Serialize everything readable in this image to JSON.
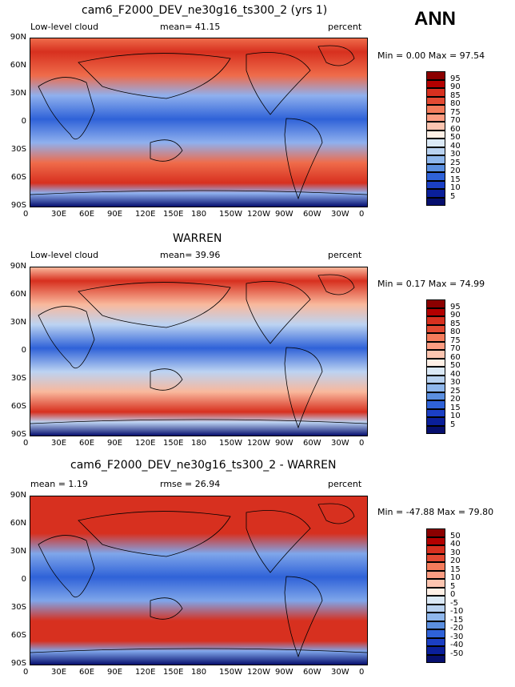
{
  "annual_label": "ANN",
  "panels": [
    {
      "title": "cam6_F2000_DEV_ne30g16_ts300_2 (yrs 1)",
      "left_text": "Low-level cloud",
      "mid_text": "mean=  41.15",
      "right_text": "percent",
      "minmax": "Min =    0.00 Max =   97.54",
      "colorbar": [
        "95",
        "90",
        "85",
        "80",
        "75",
        "70",
        "60",
        "50",
        "40",
        "30",
        "25",
        "20",
        "15",
        "10",
        "5"
      ],
      "colors": [
        "#8b0000",
        "#b30000",
        "#d7301f",
        "#e34a33",
        "#f47c5c",
        "#fc9d82",
        "#fcc5b0",
        "#fff0e6",
        "#dbe9f6",
        "#b9d2f0",
        "#8fb7ec",
        "#5b8fe0",
        "#2f62d8",
        "#1b3fc4",
        "#0a1f9a",
        "#060f6e"
      ],
      "bg": "#8fb0ee",
      "highlight": "#ef6b4a"
    },
    {
      "title": "WARREN",
      "left_text": "Low-level cloud",
      "mid_text": "mean=  39.96",
      "right_text": "percent",
      "minmax": "Min =    0.17 Max =   74.99",
      "colorbar": [
        "95",
        "90",
        "85",
        "80",
        "75",
        "70",
        "60",
        "50",
        "40",
        "30",
        "25",
        "20",
        "15",
        "10",
        "5"
      ],
      "colors": [
        "#8b0000",
        "#b30000",
        "#d7301f",
        "#e34a33",
        "#f47c5c",
        "#fc9d82",
        "#fcc5b0",
        "#fff0e6",
        "#dbe9f6",
        "#b9d2f0",
        "#8fb7ec",
        "#5b8fe0",
        "#2f62d8",
        "#1b3fc4",
        "#0a1f9a",
        "#060f6e"
      ],
      "bg": "#bcd3f2",
      "highlight": "#f9b89c"
    },
    {
      "title": "cam6_F2000_DEV_ne30g16_ts300_2 - WARREN",
      "left_text": "mean =    1.19",
      "mid_text": "rmse =   26.94",
      "right_text": "percent",
      "minmax": "Min = -47.88 Max =   79.80",
      "colorbar": [
        "50",
        "40",
        "30",
        "20",
        "15",
        "10",
        "5",
        "0",
        "-5",
        "-10",
        "-15",
        "-20",
        "-30",
        "-40",
        "-50"
      ],
      "colors": [
        "#8b0000",
        "#b30000",
        "#d7301f",
        "#e34a33",
        "#f47c5c",
        "#fc9d82",
        "#fcc5b0",
        "#fff0e6",
        "#dbe9f6",
        "#b9d2f0",
        "#8fb7ec",
        "#5b8fe0",
        "#2f62d8",
        "#1b3fc4",
        "#0a1f9a",
        "#060f6e"
      ],
      "bg": "#7fa6ea",
      "highlight": "#d7301f"
    }
  ],
  "lat_labels": [
    "90N",
    "60N",
    "30N",
    "0",
    "30S",
    "60S",
    "90S"
  ],
  "lon_labels": [
    "0",
    "30E",
    "60E",
    "90E",
    "120E",
    "150E",
    "180",
    "150W",
    "120W",
    "90W",
    "60W",
    "30W",
    "0"
  ]
}
